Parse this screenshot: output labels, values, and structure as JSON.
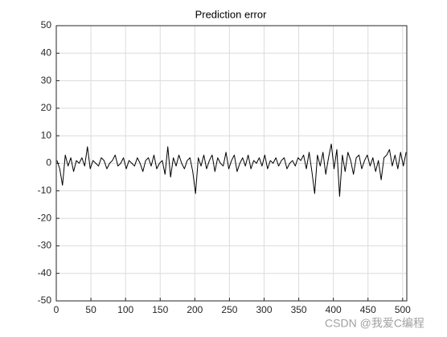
{
  "chart_data": {
    "type": "line",
    "title": "Prediction error",
    "x": [
      1,
      5,
      9,
      13,
      17,
      21,
      25,
      29,
      33,
      37,
      41,
      45,
      49,
      53,
      57,
      61,
      65,
      69,
      73,
      77,
      81,
      85,
      89,
      93,
      97,
      101,
      105,
      109,
      113,
      117,
      121,
      125,
      129,
      133,
      137,
      141,
      145,
      149,
      153,
      157,
      161,
      165,
      169,
      173,
      177,
      181,
      185,
      189,
      193,
      197,
      201,
      205,
      209,
      213,
      217,
      221,
      225,
      229,
      233,
      237,
      241,
      245,
      249,
      253,
      257,
      261,
      265,
      269,
      273,
      277,
      281,
      285,
      289,
      293,
      297,
      301,
      305,
      309,
      313,
      317,
      321,
      325,
      329,
      333,
      337,
      341,
      345,
      349,
      353,
      357,
      361,
      365,
      369,
      373,
      377,
      381,
      385,
      389,
      393,
      397,
      401,
      405,
      409,
      413,
      417,
      421,
      425,
      429,
      433,
      437,
      441,
      445,
      449,
      453,
      457,
      461,
      465,
      469,
      473,
      477,
      481,
      485,
      489,
      493,
      497,
      501,
      505
    ],
    "series": [
      {
        "color": "#000000",
        "values": [
          1,
          -2,
          -8,
          3,
          -1,
          2,
          -3,
          1,
          0,
          2,
          -1,
          6,
          -2,
          1,
          0,
          -1,
          2,
          1,
          -2,
          0,
          1,
          3,
          -1,
          0,
          2,
          -2,
          1,
          0,
          -1,
          2,
          0,
          -3,
          1,
          2,
          -1,
          3,
          -2,
          0,
          1,
          -4,
          6,
          -5,
          2,
          -1,
          3,
          0,
          -2,
          1,
          2,
          -3,
          -11,
          2,
          -1,
          3,
          -2,
          1,
          3,
          -3,
          2,
          0,
          -1,
          4,
          -2,
          1,
          3,
          -3,
          0,
          2,
          -1,
          3,
          -2,
          1,
          0,
          2,
          -1,
          3,
          -2,
          1,
          0,
          2,
          -1,
          1,
          2,
          -2,
          0,
          1,
          -1,
          2,
          1,
          3,
          -2,
          4,
          -3,
          -11,
          3,
          -1,
          4,
          -4,
          2,
          7,
          -2,
          5,
          -12,
          3,
          -3,
          4,
          1,
          -4,
          2,
          3,
          -2,
          1,
          3,
          -1,
          2,
          -3,
          1,
          -6,
          2,
          3,
          5,
          -1,
          3,
          -2,
          4,
          -1,
          4
        ]
      }
    ],
    "xlim": [
      0,
      506
    ],
    "ylim": [
      -50,
      50
    ],
    "xticks": [
      0,
      50,
      100,
      150,
      200,
      250,
      300,
      350,
      400,
      450,
      500
    ],
    "yticks": [
      -50,
      -40,
      -30,
      -20,
      -10,
      0,
      10,
      20,
      30,
      40,
      50
    ],
    "grid": true,
    "watermark": "CSDN @我爱C编程"
  }
}
